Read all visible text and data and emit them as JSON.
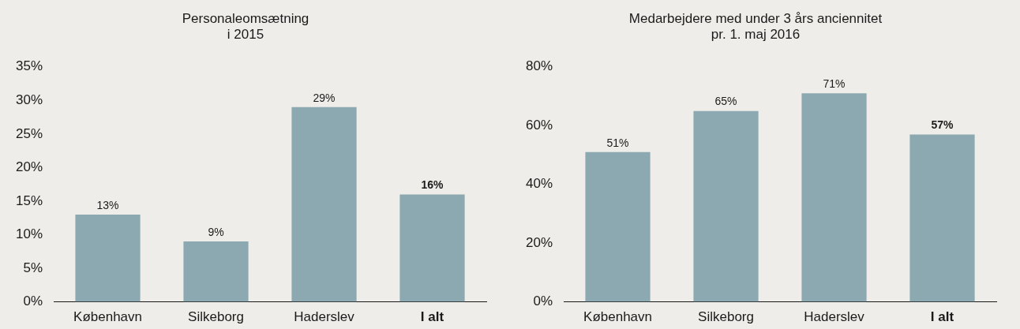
{
  "chart_data": [
    {
      "type": "bar",
      "title": "Personaleomsætning\ni 2015",
      "categories": [
        "København",
        "Silkeborg",
        "Haderslev",
        "I alt"
      ],
      "values": [
        13,
        9,
        29,
        16
      ],
      "color": "#8ca8b0",
      "value_labels": [
        "13%",
        "9%",
        "29%",
        "16%"
      ],
      "ylim": [
        0,
        35
      ],
      "yticks": [
        {
          "value": 0,
          "label": "0%"
        },
        {
          "value": 5,
          "label": "5%"
        },
        {
          "value": 10,
          "label": "10%"
        },
        {
          "value": 15,
          "label": "15%"
        },
        {
          "value": 20,
          "label": "20%"
        },
        {
          "value": 25,
          "label": "25%"
        },
        {
          "value": 30,
          "label": "30%"
        },
        {
          "value": 35,
          "label": "35%"
        }
      ],
      "grid": false,
      "legend": false
    },
    {
      "type": "bar",
      "title": "Medarbejdere med under 3 års anciennitet\npr. 1. maj 2016",
      "categories": [
        "København",
        "Silkeborg",
        "Haderslev",
        "I alt"
      ],
      "values": [
        51,
        65,
        71,
        57
      ],
      "color": "#8ca8b0",
      "value_labels": [
        "51%",
        "65%",
        "71%",
        "57%"
      ],
      "ylim": [
        0,
        80
      ],
      "yticks": [
        {
          "value": 0,
          "label": "0%"
        },
        {
          "value": 20,
          "label": "20%"
        },
        {
          "value": 40,
          "label": "40%"
        },
        {
          "value": 60,
          "label": "60%"
        },
        {
          "value": 80,
          "label": "80%"
        }
      ],
      "grid": false,
      "legend": false
    }
  ]
}
